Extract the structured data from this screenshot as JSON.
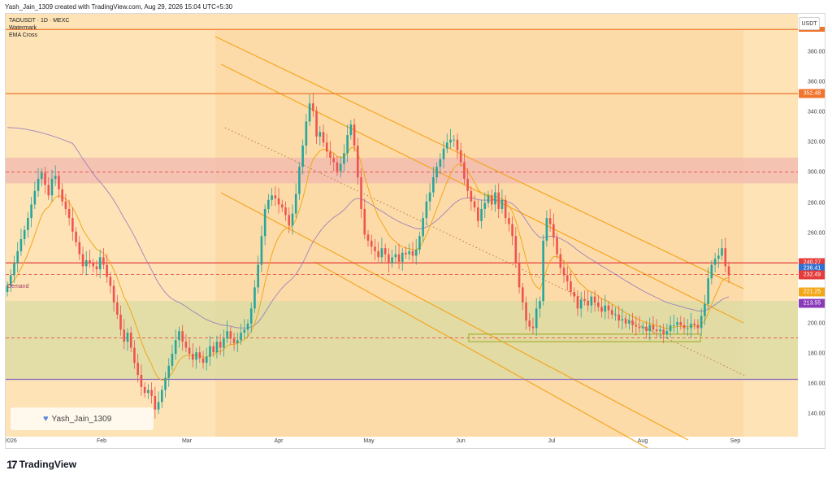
{
  "header": {
    "attribution": "Yash_Jain_1309 created with TradingView.com, Aug 29, 2026 15:04 UTC+5:30"
  },
  "legend": {
    "symbol": "TAOUSDT · 1D · MEXC",
    "indicator_1": "Watermark",
    "indicator_2": "EMA Cross"
  },
  "currency_button": "USDT",
  "price_ticks": [
    "380.00",
    "360.00",
    "340.00",
    "320.00",
    "300.00",
    "280.00",
    "260.00",
    "240.00",
    "220.00",
    "200.00",
    "180.00",
    "160.00",
    "140.00"
  ],
  "price_tags": [
    {
      "label": "352.48",
      "value": 352.48,
      "color": "#f0742c"
    },
    {
      "label": "240.27",
      "value": 240.27,
      "color": "#e43b3b"
    },
    {
      "label": "236.41",
      "value": 236.41,
      "color": "#2e6fd1"
    },
    {
      "label": "232.49",
      "value": 232.49,
      "color": "#e43b3b"
    },
    {
      "label": "221.25",
      "value": 221.25,
      "color": "#f2a818"
    },
    {
      "label": "213.55",
      "value": 213.55,
      "color": "#8a3bb8"
    }
  ],
  "time_labels": [
    "2026",
    "Feb",
    "Mar",
    "Apr",
    "May",
    "Jun",
    "Jul",
    "Aug",
    "Sep"
  ],
  "zone_label": "Demand",
  "watermark_author": "Yash_Jain_1309",
  "brand": "TradingView",
  "colors": {
    "background_zone": "#fde3b5",
    "supply_zone": "#f2b8b0",
    "demand_zone": "#d9dba3",
    "channel": "#f5a623",
    "candle_up": "#26a69a",
    "candle_down": "#ef5350",
    "resistance": "#f0742c",
    "support": "#e43b3b",
    "ema_fast": "#f2a818",
    "ema_slow": "#8a6bbf"
  },
  "chart_data": {
    "type": "candlestick",
    "symbol": "TAOUSDT",
    "interval": "1D",
    "exchange": "MEXC",
    "ylim": [
      125,
      400
    ],
    "grid": false,
    "horizontal_levels": [
      395,
      352.48,
      300.5,
      240.27,
      232.49,
      190.5,
      163
    ],
    "zones": [
      {
        "name": "supply",
        "from": 293,
        "to": 310
      },
      {
        "name": "Demand",
        "from": 163,
        "to": 215
      }
    ],
    "closes": [
      225,
      232,
      240,
      248,
      256,
      262,
      270,
      279,
      288,
      296,
      300,
      292,
      285,
      296,
      298,
      289,
      281,
      276,
      270,
      261,
      254,
      246,
      238,
      242,
      240,
      238,
      236,
      244,
      239,
      231,
      225,
      214,
      206,
      196,
      188,
      194,
      184,
      174,
      166,
      158,
      154,
      156,
      152,
      143,
      148,
      156,
      164,
      172,
      180,
      189,
      195,
      188,
      184,
      180,
      176,
      181,
      177,
      174,
      178,
      185,
      181,
      188,
      184,
      190,
      195,
      190,
      187,
      189,
      194,
      196,
      200,
      210,
      224,
      239,
      258,
      276,
      282,
      285,
      283,
      279,
      277,
      272,
      265,
      273,
      286,
      304,
      318,
      334,
      346,
      341,
      324,
      327,
      320,
      314,
      310,
      307,
      301,
      306,
      313,
      325,
      332,
      318,
      297,
      276,
      259,
      255,
      251,
      248,
      244,
      250,
      246,
      240,
      244,
      246,
      241,
      247,
      246,
      248,
      245,
      249,
      258,
      270,
      281,
      287,
      297,
      304,
      309,
      316,
      320,
      322,
      322,
      315,
      307,
      296,
      288,
      281,
      277,
      268,
      276,
      280,
      285,
      279,
      287,
      276,
      282,
      270,
      266,
      258,
      240,
      224,
      214,
      202,
      198,
      197,
      210,
      215,
      255,
      270,
      266,
      257,
      246,
      237,
      232,
      228,
      221,
      218,
      210,
      216,
      215,
      212,
      218,
      214,
      211,
      208,
      212,
      209,
      206,
      206,
      202,
      203,
      200,
      202,
      199,
      198,
      197,
      198,
      195,
      199,
      196,
      195,
      196,
      193,
      195,
      199,
      199,
      201,
      199,
      197,
      197,
      200,
      199,
      197,
      205,
      213,
      230,
      239,
      243,
      245,
      250,
      238,
      232
    ],
    "ema_fast_series": "orange moving average",
    "ema_slow_series": "purple moving average"
  }
}
